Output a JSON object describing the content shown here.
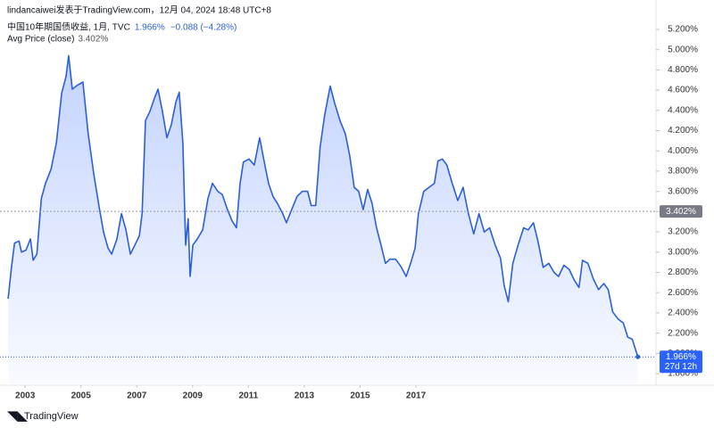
{
  "header": "lindancaiwei发表于TradingView.com，12月 04, 2024 18:48 UTC+8",
  "footer": "TradingView",
  "chart_data": {
    "type": "area",
    "xlim": [
      2002.1,
      2025.6
    ],
    "ylim": [
      1.7,
      5.3
    ],
    "xticks": [
      2003,
      2005,
      2007,
      2009,
      2011,
      2013,
      2015,
      2017
    ],
    "yticks": [
      {
        "value": 1.8,
        "label": "1.800%"
      },
      {
        "value": 2.0,
        "label": "2.000%"
      },
      {
        "value": 2.2,
        "label": "2.200%"
      },
      {
        "value": 2.4,
        "label": "2.400%"
      },
      {
        "value": 2.6,
        "label": "2.600%"
      },
      {
        "value": 2.8,
        "label": "2.800%"
      },
      {
        "value": 3.0,
        "label": "3.000%"
      },
      {
        "value": 3.2,
        "label": "3.200%"
      },
      {
        "value": 3.4,
        "label": "3.400%"
      },
      {
        "value": 3.6,
        "label": "3.600%"
      },
      {
        "value": 3.8,
        "label": "3.800%"
      },
      {
        "value": 4.0,
        "label": "4.000%"
      },
      {
        "value": 4.2,
        "label": "4.200%"
      },
      {
        "value": 4.4,
        "label": "4.400%"
      },
      {
        "value": 4.6,
        "label": "4.600%"
      },
      {
        "value": 4.8,
        "label": "4.800%"
      },
      {
        "value": 5.0,
        "label": "5.000%"
      },
      {
        "value": 5.2,
        "label": "5.200%"
      }
    ],
    "grid": false,
    "x": [
      2002.39,
      2002.52,
      2002.62,
      2002.78,
      2002.87,
      2003.03,
      2003.19,
      2003.29,
      2003.42,
      2003.58,
      2003.73,
      2003.93,
      2004.12,
      2004.31,
      2004.47,
      2004.56,
      2004.69,
      2004.88,
      2005.07,
      2005.26,
      2005.46,
      2005.65,
      2005.81,
      2005.97,
      2006.1,
      2006.29,
      2006.45,
      2006.61,
      2006.77,
      2006.93,
      2007.09,
      2007.19,
      2007.31,
      2007.47,
      2007.63,
      2007.76,
      2007.92,
      2008.08,
      2008.24,
      2008.4,
      2008.52,
      2008.65,
      2008.75,
      2008.84,
      2008.91,
      2009.01,
      2009.17,
      2009.36,
      2009.55,
      2009.71,
      2009.9,
      2010.06,
      2010.25,
      2010.41,
      2010.57,
      2010.7,
      2010.82,
      2011.02,
      2011.21,
      2011.4,
      2011.56,
      2011.72,
      2011.88,
      2012.04,
      2012.23,
      2012.36,
      2012.55,
      2012.74,
      2012.93,
      2013.12,
      2013.25,
      2013.41,
      2013.57,
      2013.73,
      2013.93,
      2014.08,
      2014.28,
      2014.47,
      2014.63,
      2014.79,
      2014.95,
      2015.11,
      2015.27,
      2015.43,
      2015.59,
      2015.75,
      2015.91,
      2016.07,
      2016.27,
      2016.46,
      2016.65,
      2016.81,
      2016.97,
      2017.09,
      2017.28,
      2017.47,
      2017.66,
      2017.79,
      2017.95,
      2018.11,
      2018.3,
      2018.5,
      2018.69,
      2018.88,
      2019.07,
      2019.26,
      2019.45,
      2019.64,
      2019.84,
      2020.03,
      2020.16,
      2020.31,
      2020.47,
      2020.66,
      2020.86,
      2021.02,
      2021.21,
      2021.37,
      2021.56,
      2021.76,
      2021.95,
      2022.11,
      2022.3,
      2022.49,
      2022.68,
      2022.84,
      2022.97,
      2023.16,
      2023.35,
      2023.54,
      2023.73,
      2023.89,
      2024.05,
      2024.24,
      2024.43,
      2024.59,
      2024.75,
      2024.95
    ],
    "series": [
      {
        "name": "中国10年期国债收益, 1月, TVC",
        "color": "#2b5fd9",
        "values": [
          2.54,
          2.87,
          3.09,
          3.11,
          3.0,
          3.02,
          3.13,
          2.92,
          2.98,
          3.53,
          3.68,
          3.82,
          4.08,
          4.57,
          4.74,
          4.94,
          4.61,
          4.65,
          4.68,
          4.17,
          3.77,
          3.45,
          3.2,
          3.04,
          2.98,
          3.13,
          3.38,
          3.22,
          2.98,
          3.07,
          3.16,
          3.38,
          4.3,
          4.39,
          4.52,
          4.61,
          4.39,
          4.13,
          4.26,
          4.48,
          4.58,
          4.08,
          3.07,
          3.33,
          2.76,
          3.07,
          3.13,
          3.22,
          3.53,
          3.68,
          3.6,
          3.57,
          3.42,
          3.31,
          3.24,
          3.68,
          3.89,
          3.92,
          3.86,
          4.13,
          3.9,
          3.68,
          3.55,
          3.48,
          3.38,
          3.29,
          3.42,
          3.55,
          3.6,
          3.6,
          3.46,
          3.46,
          4.04,
          4.35,
          4.64,
          4.48,
          4.3,
          4.17,
          3.95,
          3.64,
          3.6,
          3.42,
          3.62,
          3.48,
          3.24,
          3.07,
          2.89,
          2.93,
          2.93,
          2.86,
          2.76,
          2.89,
          3.04,
          3.38,
          3.6,
          3.64,
          3.68,
          3.9,
          3.92,
          3.86,
          3.68,
          3.51,
          3.64,
          3.38,
          3.18,
          3.38,
          3.2,
          3.24,
          3.07,
          2.94,
          2.67,
          2.51,
          2.89,
          3.07,
          3.24,
          3.22,
          3.29,
          3.11,
          2.85,
          2.89,
          2.8,
          2.76,
          2.87,
          2.83,
          2.72,
          2.65,
          2.92,
          2.89,
          2.74,
          2.63,
          2.69,
          2.63,
          2.41,
          2.34,
          2.3,
          2.16,
          2.14,
          1.966
        ]
      }
    ],
    "last": {
      "value": 1.966,
      "label": "1.966%"
    },
    "change": "−0.088 (−4.28%)",
    "countdown": "27d 12h",
    "average": {
      "name": "Avg Price (close)",
      "value": 3.402,
      "label": "3.402%"
    }
  }
}
